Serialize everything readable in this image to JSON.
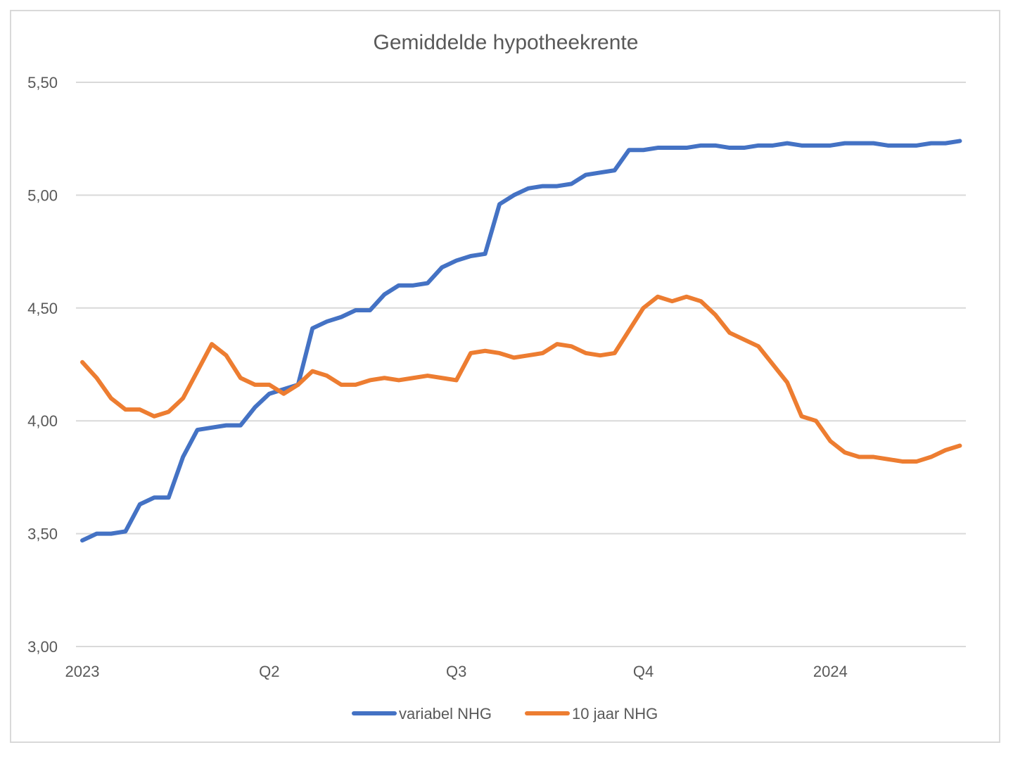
{
  "chart_data": {
    "type": "line",
    "title": "Gemiddelde hypotheekrente",
    "xlabel": "",
    "ylabel": "",
    "ylim": [
      3.0,
      5.5
    ],
    "y_ticks": [
      "3,00",
      "3,50",
      "4,00",
      "4,50",
      "5,00",
      "5,50"
    ],
    "y_tick_values": [
      3.0,
      3.5,
      4.0,
      4.5,
      5.0,
      5.5
    ],
    "x_tick_labels": [
      "2023",
      "Q2",
      "Q3",
      "Q4",
      "2024"
    ],
    "x_tick_index": [
      0,
      13,
      26,
      39,
      52
    ],
    "grid": true,
    "legend_position": "bottom",
    "series": [
      {
        "name": "variabel NHG",
        "color": "#4472c4",
        "values": [
          3.47,
          3.5,
          3.5,
          3.51,
          3.63,
          3.66,
          3.66,
          3.84,
          3.96,
          3.97,
          3.98,
          3.98,
          4.06,
          4.12,
          4.14,
          4.16,
          4.41,
          4.44,
          4.46,
          4.49,
          4.49,
          4.56,
          4.6,
          4.6,
          4.61,
          4.68,
          4.71,
          4.73,
          4.74,
          4.96,
          5.0,
          5.03,
          5.04,
          5.04,
          5.05,
          5.09,
          5.1,
          5.11,
          5.2,
          5.2,
          5.21,
          5.21,
          5.21,
          5.22,
          5.22,
          5.21,
          5.21,
          5.22,
          5.22,
          5.23,
          5.22,
          5.22,
          5.22,
          5.23,
          5.23,
          5.23,
          5.22,
          5.22,
          5.22,
          5.23,
          5.23,
          5.24
        ]
      },
      {
        "name": "10 jaar NHG",
        "color": "#ed7d31",
        "values": [
          4.26,
          4.19,
          4.1,
          4.05,
          4.05,
          4.02,
          4.04,
          4.1,
          4.22,
          4.34,
          4.29,
          4.19,
          4.16,
          4.16,
          4.12,
          4.16,
          4.22,
          4.2,
          4.16,
          4.16,
          4.18,
          4.19,
          4.18,
          4.19,
          4.2,
          4.19,
          4.18,
          4.3,
          4.31,
          4.3,
          4.28,
          4.29,
          4.3,
          4.34,
          4.33,
          4.3,
          4.29,
          4.3,
          4.4,
          4.5,
          4.55,
          4.53,
          4.55,
          4.53,
          4.47,
          4.39,
          4.36,
          4.33,
          4.25,
          4.17,
          4.02,
          4.0,
          3.91,
          3.86,
          3.84,
          3.84,
          3.83,
          3.82,
          3.82,
          3.84,
          3.87,
          3.89
        ]
      }
    ]
  }
}
